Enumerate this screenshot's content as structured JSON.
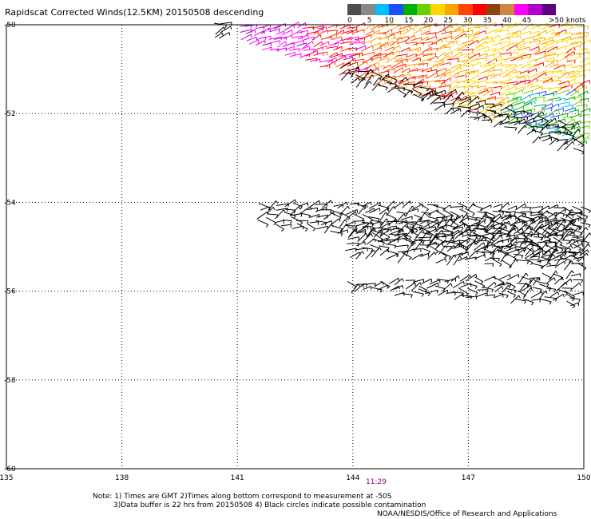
{
  "title": "Rapidscat Corrected Winds(12.5KM) 20150508 descending",
  "color_scale": {
    "colors": [
      "#4d4d4d",
      "#888888",
      "#00bfff",
      "#1e4fff",
      "#00b000",
      "#6ad100",
      "#ffd700",
      "#ffa500",
      "#ff4500",
      "#ff0000",
      "#8b4513",
      "#cd853f",
      "#ff00ff",
      "#b000c8",
      "#5a0080"
    ],
    "labels": [
      "0",
      "5",
      "10",
      "15",
      "20",
      "25",
      "30",
      "35",
      "40",
      "45",
      ">50 knots"
    ]
  },
  "time_label": "11:29",
  "notes": [
    "Note: 1) Times are GMT 2)Times along bottom correspond to measurement at -50S",
    "3)Data buffer is 22 hrs from 20150508 4) Black circles indicate possible contamination",
    "NOAA/NESDIS/Office of Research and Applications"
  ],
  "chart_data": {
    "type": "scatter",
    "title": "Rapidscat Corrected Winds(12.5KM) 20150508 descending",
    "xlabel": "",
    "ylabel": "",
    "xlim": [
      135,
      150
    ],
    "ylim": [
      -60,
      -50
    ],
    "x_ticks": [
      "135",
      "138",
      "141",
      "144",
      "147",
      "150"
    ],
    "y_ticks": [
      "-50",
      "-52",
      "-54",
      "-56",
      "-58",
      "-60"
    ],
    "grid": true,
    "units": "knots",
    "swaths": [
      {
        "kind": "colored",
        "lon": [
          141.2,
          150
        ],
        "lat_top": -50,
        "lat_bottom_start": -50.4,
        "lat_bottom_end": -52.7
      },
      {
        "kind": "black",
        "lon": [
          143.8,
          150
        ],
        "lat_top_start": -50.9,
        "lat_top_end": -52.3,
        "lat_bottom_start": -51.2,
        "lat_bottom_end": -52.9
      },
      {
        "kind": "black",
        "lon": [
          140.5,
          140.9
        ],
        "lat_top": -49.95,
        "lat_bottom": -50.25
      },
      {
        "kind": "black",
        "lon": [
          141.7,
          150
        ],
        "lat_top_start": -54.0,
        "lat_top_end": -54.1,
        "lat_bottom_start": -54.5,
        "lat_bottom_end": -55.4
      },
      {
        "kind": "black",
        "lon": [
          144.0,
          150
        ],
        "lat_top_start": -54.5,
        "lat_top_end": -54.2,
        "lat_bottom_start": -55.2,
        "lat_bottom_end": -55.5
      },
      {
        "kind": "black",
        "lon": [
          144.0,
          150
        ],
        "lat_top_start": -55.8,
        "lat_top_end": -55.6,
        "lat_bottom_start": -56.0,
        "lat_bottom_end": -56.3
      }
    ]
  }
}
